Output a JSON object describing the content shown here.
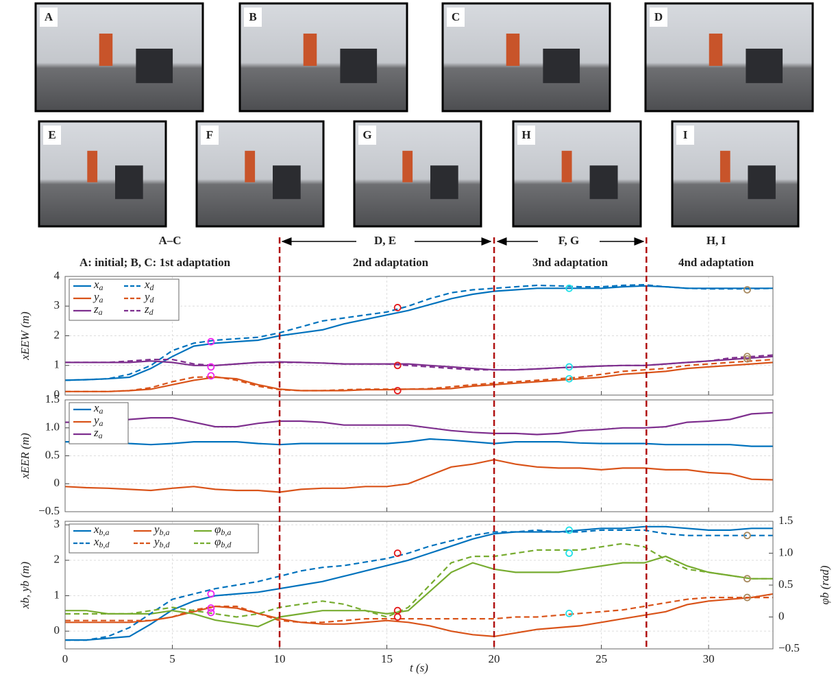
{
  "photos": [
    "A",
    "B",
    "C",
    "D",
    "E",
    "F",
    "G",
    "H",
    "I"
  ],
  "phase_labels": [
    "A–C",
    "A: initial; B, C: 1st adaptation",
    "D, E",
    "2nd adaptation",
    "F, G",
    "3nd adaptation",
    "H, I",
    "4nd adaptation"
  ],
  "phase_lines": [
    10,
    20,
    27.1
  ],
  "chart_data": [
    {
      "type": "line",
      "ylabel": "xEEW (m)",
      "xlim": [
        0,
        33
      ],
      "xticks": [
        0,
        5,
        10,
        15,
        20,
        25,
        30
      ],
      "ylim": [
        0,
        4
      ],
      "yticks": [
        0,
        1,
        2,
        3,
        4
      ],
      "grid": true,
      "legend": "upper left",
      "x": [
        0,
        1,
        2,
        3,
        4,
        5,
        6,
        7,
        8,
        9,
        10,
        11,
        12,
        13,
        14,
        15,
        16,
        17,
        18,
        19,
        20,
        21,
        22,
        23,
        24,
        25,
        26,
        27,
        28,
        29,
        30,
        31,
        32,
        33
      ],
      "series": [
        {
          "name": "xa",
          "color": "#0072bd",
          "dash": false,
          "values": [
            0.5,
            0.52,
            0.55,
            0.6,
            0.9,
            1.3,
            1.65,
            1.75,
            1.8,
            1.85,
            2.0,
            2.1,
            2.2,
            2.4,
            2.55,
            2.7,
            2.85,
            3.05,
            3.25,
            3.4,
            3.5,
            3.55,
            3.6,
            3.6,
            3.6,
            3.6,
            3.65,
            3.68,
            3.65,
            3.6,
            3.6,
            3.6,
            3.6,
            3.6
          ]
        },
        {
          "name": "xd",
          "color": "#0072bd",
          "dash": true,
          "values": [
            0.5,
            0.52,
            0.55,
            0.7,
            1.0,
            1.5,
            1.75,
            1.85,
            1.9,
            1.95,
            2.1,
            2.3,
            2.5,
            2.6,
            2.7,
            2.8,
            3.0,
            3.25,
            3.45,
            3.55,
            3.6,
            3.65,
            3.7,
            3.68,
            3.65,
            3.65,
            3.7,
            3.72,
            3.65,
            3.6,
            3.58,
            3.58,
            3.58,
            3.6
          ]
        },
        {
          "name": "ya",
          "color": "#d95319",
          "dash": false,
          "values": [
            0.12,
            0.12,
            0.12,
            0.15,
            0.2,
            0.35,
            0.5,
            0.6,
            0.55,
            0.35,
            0.2,
            0.15,
            0.15,
            0.15,
            0.18,
            0.18,
            0.2,
            0.2,
            0.22,
            0.3,
            0.35,
            0.4,
            0.45,
            0.5,
            0.55,
            0.6,
            0.7,
            0.75,
            0.8,
            0.9,
            0.95,
            1.0,
            1.05,
            1.1
          ]
        },
        {
          "name": "yd",
          "color": "#d95319",
          "dash": true,
          "values": [
            0.12,
            0.12,
            0.12,
            0.15,
            0.25,
            0.45,
            0.6,
            0.62,
            0.5,
            0.3,
            0.18,
            0.15,
            0.15,
            0.18,
            0.2,
            0.2,
            0.2,
            0.22,
            0.28,
            0.35,
            0.4,
            0.45,
            0.5,
            0.55,
            0.6,
            0.7,
            0.8,
            0.85,
            0.9,
            1.0,
            1.05,
            1.1,
            1.15,
            1.2
          ]
        },
        {
          "name": "za",
          "color": "#7e2f8e",
          "dash": false,
          "values": [
            1.1,
            1.1,
            1.1,
            1.1,
            1.15,
            1.1,
            1.0,
            1.0,
            1.05,
            1.1,
            1.12,
            1.1,
            1.08,
            1.05,
            1.05,
            1.05,
            1.05,
            1.0,
            0.95,
            0.9,
            0.85,
            0.85,
            0.88,
            0.92,
            0.95,
            0.98,
            1.0,
            1.0,
            1.05,
            1.1,
            1.15,
            1.2,
            1.25,
            1.3
          ]
        },
        {
          "name": "zd",
          "color": "#7e2f8e",
          "dash": true,
          "values": [
            1.1,
            1.1,
            1.1,
            1.15,
            1.2,
            1.2,
            1.05,
            1.0,
            1.05,
            1.1,
            1.1,
            1.1,
            1.08,
            1.05,
            1.05,
            1.05,
            1.0,
            0.95,
            0.9,
            0.85,
            0.85,
            0.85,
            0.88,
            0.92,
            0.95,
            0.98,
            1.0,
            1.0,
            1.05,
            1.1,
            1.15,
            1.25,
            1.3,
            1.35
          ]
        }
      ],
      "markers": [
        {
          "x": 6.8,
          "color": "#ee22ee",
          "values": [
            1.8,
            0.95,
            0.65
          ]
        },
        {
          "x": 15.5,
          "color": "#e41a1c",
          "values": [
            2.95,
            1.0,
            0.15
          ]
        },
        {
          "x": 23.5,
          "color": "#22e0e8",
          "values": [
            3.6,
            0.95,
            0.55
          ]
        },
        {
          "x": 31.8,
          "color": "#a88a60",
          "values": [
            3.55,
            1.3,
            1.22
          ]
        }
      ]
    },
    {
      "type": "line",
      "ylabel": "xEER (m)",
      "xlim": [
        0,
        33
      ],
      "xticks": [
        0,
        5,
        10,
        15,
        20,
        25,
        30
      ],
      "ylim": [
        -0.5,
        1.5
      ],
      "yticks": [
        {
          "value": -0.5,
          "label": "−0.5"
        },
        0,
        0.5,
        {
          "value": 1.0,
          "label": "1.0"
        },
        1.5
      ],
      "grid": true,
      "legend": "upper left",
      "x": [
        0,
        1,
        2,
        3,
        4,
        5,
        6,
        7,
        8,
        9,
        10,
        11,
        12,
        13,
        14,
        15,
        16,
        17,
        18,
        19,
        20,
        21,
        22,
        23,
        24,
        25,
        26,
        27,
        28,
        29,
        30,
        31,
        32,
        33
      ],
      "series": [
        {
          "name": "xa",
          "color": "#0072bd",
          "dash": false,
          "values": [
            0.75,
            0.75,
            0.75,
            0.72,
            0.7,
            0.72,
            0.75,
            0.75,
            0.75,
            0.72,
            0.7,
            0.72,
            0.72,
            0.72,
            0.72,
            0.72,
            0.75,
            0.8,
            0.78,
            0.75,
            0.72,
            0.75,
            0.75,
            0.75,
            0.73,
            0.72,
            0.72,
            0.72,
            0.7,
            0.7,
            0.7,
            0.7,
            0.67,
            0.67
          ]
        },
        {
          "name": "ya",
          "color": "#d95319",
          "dash": false,
          "values": [
            -0.05,
            -0.07,
            -0.08,
            -0.1,
            -0.12,
            -0.08,
            -0.05,
            -0.1,
            -0.12,
            -0.12,
            -0.15,
            -0.1,
            -0.08,
            -0.08,
            -0.05,
            -0.05,
            0.0,
            0.15,
            0.3,
            0.35,
            0.43,
            0.35,
            0.3,
            0.28,
            0.28,
            0.25,
            0.28,
            0.28,
            0.25,
            0.25,
            0.2,
            0.18,
            0.08,
            0.07
          ]
        },
        {
          "name": "za",
          "color": "#7e2f8e",
          "dash": false,
          "values": [
            1.1,
            1.1,
            1.1,
            1.15,
            1.18,
            1.18,
            1.1,
            1.02,
            1.02,
            1.08,
            1.12,
            1.12,
            1.1,
            1.05,
            1.05,
            1.05,
            1.05,
            1.0,
            0.95,
            0.92,
            0.9,
            0.9,
            0.88,
            0.9,
            0.95,
            0.97,
            1.0,
            1.0,
            1.02,
            1.1,
            1.12,
            1.15,
            1.25,
            1.27
          ]
        }
      ]
    },
    {
      "type": "line",
      "ylabel": "xb, yb (m)",
      "y2label": "φb (rad)",
      "xlabel": "t (s)",
      "xlim": [
        0,
        33
      ],
      "xticks": [
        0,
        5,
        10,
        15,
        20,
        25,
        30
      ],
      "ylim": [
        -0.5,
        3.1
      ],
      "yticks": [
        0,
        1,
        2,
        3
      ],
      "y2lim": [
        -0.5,
        1.5
      ],
      "y2ticks": [
        {
          "value": -0.5,
          "label": "−0.5"
        },
        0,
        0.5,
        {
          "value": 1.0,
          "label": "1.0"
        },
        1.5
      ],
      "grid": true,
      "legend": "upper left",
      "x": [
        0,
        1,
        2,
        3,
        4,
        5,
        6,
        7,
        8,
        9,
        10,
        11,
        12,
        13,
        14,
        15,
        16,
        17,
        18,
        19,
        20,
        21,
        22,
        23,
        24,
        25,
        26,
        27,
        28,
        29,
        30,
        31,
        32,
        33
      ],
      "series": [
        {
          "name": "xb,a",
          "color": "#0072bd",
          "dash": false,
          "values": [
            -0.25,
            -0.25,
            -0.2,
            -0.15,
            0.2,
            0.6,
            0.85,
            1.0,
            1.05,
            1.1,
            1.2,
            1.3,
            1.4,
            1.55,
            1.7,
            1.85,
            2.0,
            2.2,
            2.4,
            2.6,
            2.75,
            2.8,
            2.8,
            2.8,
            2.85,
            2.9,
            2.9,
            2.95,
            2.95,
            2.9,
            2.85,
            2.85,
            2.9,
            2.9
          ]
        },
        {
          "name": "yb,a",
          "color": "#d95319",
          "dash": false,
          "values": [
            0.25,
            0.25,
            0.25,
            0.25,
            0.3,
            0.4,
            0.55,
            0.7,
            0.65,
            0.5,
            0.35,
            0.25,
            0.2,
            0.2,
            0.25,
            0.3,
            0.25,
            0.15,
            0.0,
            -0.1,
            -0.15,
            -0.05,
            0.05,
            0.1,
            0.15,
            0.25,
            0.35,
            0.45,
            0.55,
            0.75,
            0.85,
            0.9,
            0.95,
            1.05
          ]
        },
        {
          "name": "φb,a",
          "color": "#77ac30",
          "dash": false,
          "axis": "y2",
          "values": [
            0.1,
            0.1,
            0.05,
            0.05,
            0.05,
            0.1,
            0.05,
            -0.05,
            -0.1,
            -0.15,
            0.0,
            0.05,
            0.1,
            0.1,
            0.1,
            0.05,
            0.1,
            0.4,
            0.7,
            0.85,
            0.75,
            0.7,
            0.7,
            0.7,
            0.75,
            0.8,
            0.85,
            0.85,
            0.95,
            0.8,
            0.7,
            0.65,
            0.6,
            0.6
          ]
        },
        {
          "name": "xb,d",
          "color": "#0072bd",
          "dash": true,
          "values": [
            -0.25,
            -0.25,
            -0.15,
            0.1,
            0.5,
            0.9,
            1.05,
            1.2,
            1.3,
            1.4,
            1.55,
            1.7,
            1.8,
            1.85,
            1.95,
            2.05,
            2.2,
            2.4,
            2.55,
            2.7,
            2.8,
            2.8,
            2.85,
            2.8,
            2.8,
            2.85,
            2.85,
            2.85,
            2.75,
            2.7,
            2.7,
            2.7,
            2.7,
            2.7
          ]
        },
        {
          "name": "yb,d",
          "color": "#d95319",
          "dash": true,
          "values": [
            0.3,
            0.3,
            0.3,
            0.3,
            0.3,
            0.4,
            0.6,
            0.7,
            0.7,
            0.5,
            0.3,
            0.25,
            0.25,
            0.3,
            0.35,
            0.35,
            0.35,
            0.35,
            0.35,
            0.35,
            0.35,
            0.4,
            0.4,
            0.45,
            0.5,
            0.55,
            0.6,
            0.7,
            0.8,
            0.9,
            0.95,
            0.95,
            0.95,
            0.95
          ]
        },
        {
          "name": "φb,d",
          "color": "#77ac30",
          "dash": true,
          "axis": "y2",
          "values": [
            0.05,
            0.05,
            0.05,
            0.05,
            0.1,
            0.15,
            0.1,
            0.05,
            0.0,
            0.05,
            0.15,
            0.2,
            0.25,
            0.2,
            0.1,
            0.0,
            0.15,
            0.5,
            0.85,
            0.95,
            0.95,
            1.0,
            1.05,
            1.05,
            1.05,
            1.1,
            1.15,
            1.1,
            0.9,
            0.75,
            0.7,
            0.65,
            0.6,
            0.6
          ]
        }
      ],
      "markers": [
        {
          "x": 6.8,
          "color": "#ee22ee",
          "values": [
            1.05,
            0.65
          ],
          "y2values": [
            0.07
          ]
        },
        {
          "x": 15.5,
          "color": "#e41a1c",
          "values": [
            2.2,
            0.4
          ],
          "y2values": [
            0.1
          ]
        },
        {
          "x": 23.5,
          "color": "#22e0e8",
          "values": [
            2.85,
            0.5
          ],
          "y2values": [
            1.0
          ]
        },
        {
          "x": 31.8,
          "color": "#a88a60",
          "values": [
            2.7,
            0.95
          ],
          "y2values": [
            0.6
          ]
        }
      ]
    }
  ]
}
